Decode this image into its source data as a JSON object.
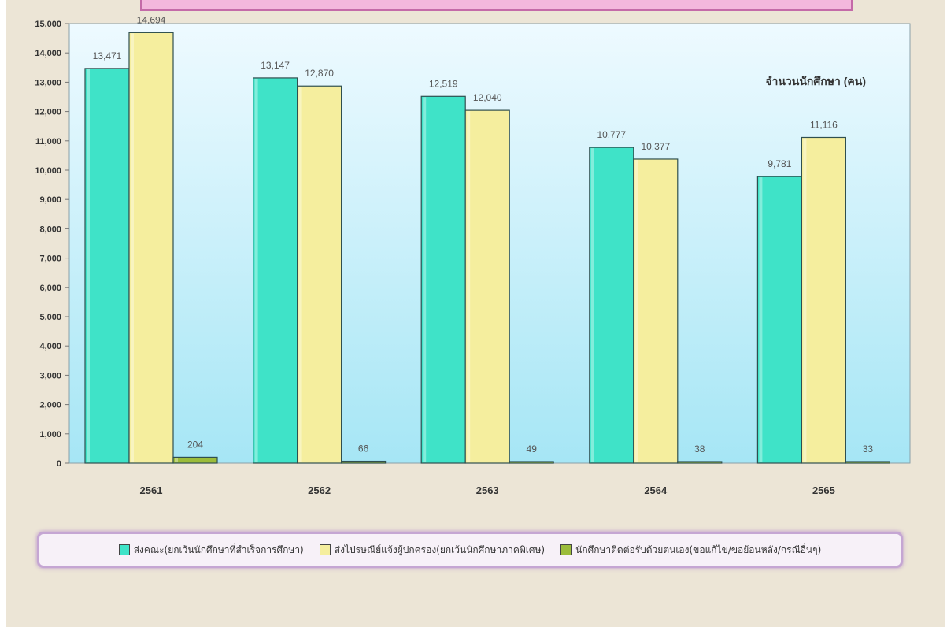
{
  "chart_data": {
    "type": "bar",
    "title": "จำนวนนักศึกษา (คน)",
    "categories": [
      "2561",
      "2562",
      "2563",
      "2564",
      "2565"
    ],
    "ylim": [
      0,
      15000
    ],
    "yticks": [
      "0",
      "1,000",
      "2,000",
      "3,000",
      "4,000",
      "5,000",
      "6,000",
      "7,000",
      "8,000",
      "9,000",
      "10,000",
      "11,000",
      "12,000",
      "13,000",
      "14,000",
      "15,000"
    ],
    "grid": false,
    "legend_position": "bottom",
    "series": [
      {
        "name": "ส่งคณะ(ยกเว้นนักศึกษาที่สำเร็จการศึกษา)",
        "values": [
          13471,
          13147,
          12519,
          10777,
          9781
        ],
        "labels": [
          "13,471",
          "13,147",
          "12,519",
          "10,777",
          "9,781"
        ],
        "color": "#3fe3c8"
      },
      {
        "name": "ส่งไปรษณีย์แจ้งผู้ปกครอง(ยกเว้นนักศึกษาภาคพิเศษ)",
        "values": [
          14694,
          12870,
          12040,
          10377,
          11116
        ],
        "labels": [
          "14,694",
          "12,870",
          "12,040",
          "10,377",
          "11,116"
        ],
        "color": "#f5ee9e"
      },
      {
        "name": "นักศึกษาติดต่อรับด้วยตนเอง(ขอแก้ไข/ขอย้อนหลัง/กรณีอื่นๆ)",
        "values": [
          204,
          66,
          49,
          38,
          33
        ],
        "labels": [
          "204",
          "66",
          "49",
          "38",
          "33"
        ],
        "color": "#9bbc3a"
      }
    ]
  }
}
